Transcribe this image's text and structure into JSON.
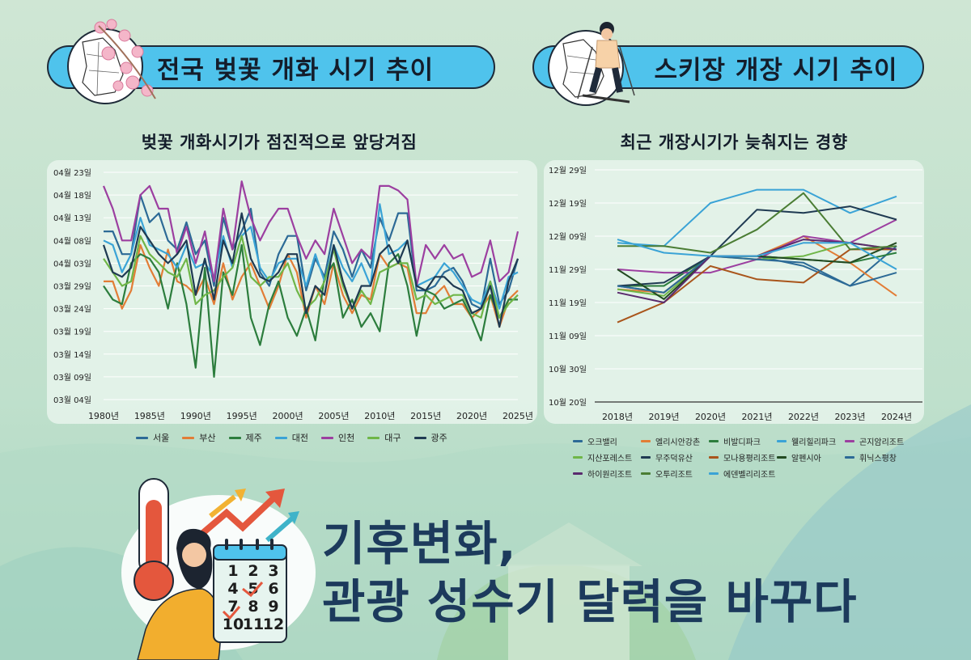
{
  "left_banner": {
    "title": "전국 벚꽃 개화 시기 추이"
  },
  "right_banner": {
    "title": "스키장 개장 시기 추이"
  },
  "left_subtitle": "벚꽃 개화시기가 점진적으로 앞당겨짐",
  "right_subtitle": "최근 개장시기가 늦춰지는 경향",
  "headline": {
    "line1": "기후변화,",
    "line2": "관광 성수기 달력을 바꾸다"
  },
  "calendar_numbers": [
    "1",
    "2",
    "3",
    "4",
    "5",
    "6",
    "7",
    "8",
    "9",
    "10",
    "11",
    "12"
  ],
  "chart_data": [
    {
      "type": "line",
      "y_unit": "date",
      "y_ticks": [
        "04월 23일",
        "04월 18일",
        "04월 13일",
        "04월 08일",
        "04월 03일",
        "03월 29일",
        "03월 24일",
        "03월 19일",
        "03월 14일",
        "03월 09일",
        "03월 04일"
      ],
      "ylim": [
        "03-04",
        "04-23"
      ],
      "x_ticks": [
        "1980년",
        "1985년",
        "1990년",
        "1995년",
        "2000년",
        "2005년",
        "2010년",
        "2015년",
        "2020년",
        "2025년"
      ],
      "xlim": [
        1980,
        2025
      ],
      "grid": "horizontal",
      "legend": "bottom",
      "series": [
        {
          "name": "서울",
          "color": "#2c6a96",
          "values": [
            "04-10",
            "04-10",
            "04-05",
            "04-05",
            "04-18",
            "04-12",
            "04-14",
            "04-08",
            "04-06",
            "04-12",
            "04-05",
            "04-08",
            "03-29",
            "04-13",
            "04-06",
            "04-10",
            "04-15",
            "04-01",
            "03-29",
            "04-05",
            "04-09",
            "04-09",
            "03-28",
            "04-04",
            "03-31",
            "04-10",
            "04-06",
            "03-31",
            "04-06",
            "04-02",
            "04-13",
            "04-08",
            "04-14",
            "04-14",
            "03-28",
            "03-28",
            "03-29",
            "04-01",
            "04-02",
            "03-30",
            "03-25",
            "03-24",
            "04-04",
            "03-25",
            "03-28",
            "04-04"
          ]
        },
        {
          "name": "부산",
          "color": "#e27d36",
          "values": [
            "03-30",
            "03-30",
            "03-24",
            "03-28",
            "04-07",
            "04-02",
            "03-29",
            "04-06",
            "03-30",
            "03-29",
            "03-27",
            "03-31",
            "03-25",
            "04-03",
            "03-26",
            "03-31",
            "04-03",
            "03-29",
            "03-24",
            "03-29",
            "04-05",
            "04-01",
            "03-22",
            "03-29",
            "03-25",
            "04-03",
            "03-27",
            "03-23",
            "03-27",
            "03-26",
            "04-05",
            "04-02",
            "04-03",
            "04-02",
            "03-23",
            "03-23",
            "03-27",
            "03-29",
            "03-25",
            "03-25",
            "03-22",
            "03-24",
            "03-27",
            "03-20",
            "03-26",
            "03-28"
          ]
        },
        {
          "name": "제주",
          "color": "#2c7d3d",
          "values": [
            "03-29",
            "03-26",
            "03-25",
            "04-03",
            "04-05",
            "04-04",
            "04-01",
            "03-24",
            "04-03",
            "03-25",
            "03-11",
            "04-02",
            "03-09",
            "04-01",
            "03-27",
            "04-07",
            "03-22",
            "03-16",
            "03-25",
            "03-30",
            "03-22",
            "03-18",
            "03-24",
            "03-17",
            "03-31",
            "04-03",
            "03-22",
            "03-26",
            "03-20",
            "03-23",
            "03-19",
            "04-03",
            "04-05",
            "03-29",
            "03-18",
            "03-28",
            "03-27",
            "03-24",
            "03-25",
            "03-26",
            "03-22",
            "03-17",
            "03-27",
            "03-22",
            "03-26",
            "03-26"
          ]
        },
        {
          "name": "대전",
          "color": "#3aa3d6",
          "values": [
            "04-08",
            "04-07",
            "04-01",
            "04-05",
            "04-13",
            "04-07",
            "04-06",
            "04-05",
            "04-02",
            "04-07",
            "04-02",
            "04-03",
            "03-31",
            "04-09",
            "04-02",
            "04-09",
            "04-11",
            "04-02",
            "03-30",
            "04-03",
            "04-04",
            "04-04",
            "03-29",
            "04-05",
            "03-30",
            "04-07",
            "04-02",
            "03-30",
            "04-03",
            "03-29",
            "04-16",
            "04-05",
            "04-06",
            "04-08",
            "03-29",
            "03-30",
            "03-31",
            "04-03",
            "04-01",
            "03-29",
            "03-26",
            "03-25",
            "03-30",
            "03-24",
            "03-31",
            "04-01"
          ]
        },
        {
          "name": "인천",
          "color": "#9c3fa0",
          "values": [
            "04-20",
            "04-15",
            "04-08",
            "04-08",
            "04-18",
            "04-20",
            "04-15",
            "04-15",
            "04-05",
            "04-11",
            "04-03",
            "04-10",
            "03-30",
            "04-15",
            "04-06",
            "04-21",
            "04-13",
            "04-08",
            "04-12",
            "04-15",
            "04-15",
            "04-09",
            "04-04",
            "04-08",
            "04-05",
            "04-15",
            "04-09",
            "04-03",
            "04-06",
            "04-04",
            "04-20",
            "04-20",
            "04-19",
            "04-17",
            "03-29",
            "04-07",
            "04-04",
            "04-07",
            "04-04",
            "04-05",
            "03-31",
            "04-01",
            "04-08",
            "03-30",
            "04-01",
            "04-10"
          ]
        },
        {
          "name": "대구",
          "color": "#6fb648",
          "values": [
            "04-04",
            "04-01",
            "03-29",
            "03-30",
            "04-09",
            "04-05",
            "04-03",
            "04-01",
            "03-31",
            "04-04",
            "03-25",
            "03-27",
            "03-28",
            "03-31",
            "04-02",
            "04-09",
            "03-31",
            "03-29",
            "03-31",
            "03-31",
            "04-03",
            "03-28",
            "03-24",
            "03-26",
            "03-30",
            "04-06",
            "03-29",
            "03-24",
            "03-28",
            "03-25",
            "04-01",
            "04-02",
            "04-03",
            "04-03",
            "03-26",
            "03-27",
            "03-25",
            "03-26",
            "03-27",
            "03-27",
            "03-23",
            "03-22",
            "03-30",
            "03-22",
            "03-25",
            "03-27"
          ]
        },
        {
          "name": "광주",
          "color": "#1f3a52",
          "values": [
            "04-07",
            "04-01",
            "03-31",
            "04-02",
            "04-11",
            "04-08",
            "04-05",
            "04-03",
            "04-05",
            "04-08",
            "03-27",
            "04-04",
            "03-26",
            "04-08",
            "04-03",
            "04-14",
            "04-04",
            "03-31",
            "03-30",
            "04-01",
            "04-05",
            "04-05",
            "03-23",
            "03-29",
            "03-27",
            "04-07",
            "03-30",
            "03-24",
            "03-29",
            "03-29",
            "04-05",
            "04-07",
            "04-03",
            "04-08",
            "03-29",
            "03-28",
            "03-31",
            "03-31",
            "03-29",
            "03-28",
            "03-23",
            "03-24",
            "03-29",
            "03-20",
            "03-30",
            "04-04"
          ]
        }
      ]
    },
    {
      "type": "line",
      "y_unit": "date",
      "y_ticks": [
        "12월 29일",
        "12월 19일",
        "12월 09일",
        "11월 29일",
        "11월 19일",
        "11월 09일",
        "10월 30일",
        "10월 20일"
      ],
      "ylim": [
        "10-20",
        "12-29"
      ],
      "categories": [
        "2018년",
        "2019년",
        "2020년",
        "2021년",
        "2022년",
        "2023년",
        "2024년"
      ],
      "grid": "horizontal",
      "legend": "bottom",
      "series": [
        {
          "name": "오크밸리",
          "color": "#2c6a96",
          "values": [
            "11-24",
            "11-22",
            "12-03",
            "12-03",
            "11-30",
            "11-24",
            "12-06"
          ]
        },
        {
          "name": "엘리시안강촌",
          "color": "#e27d36",
          "values": [
            "11-23",
            "11-22",
            "12-03",
            "12-03",
            "12-09",
            "12-01",
            "11-21"
          ]
        },
        {
          "name": "비발디파크",
          "color": "#2c7d3d",
          "values": [
            "11-24",
            "11-24",
            "12-03",
            "12-03",
            "12-02",
            "12-01",
            "12-04"
          ]
        },
        {
          "name": "웰리힐리파크",
          "color": "#3aa3d6",
          "values": [
            "12-07",
            "12-06",
            "12-19",
            "12-23",
            "12-23",
            "12-16",
            "12-21"
          ]
        },
        {
          "name": "곤지암리조트",
          "color": "#9c3fa0",
          "values": [
            "11-29",
            "11-28",
            "11-28",
            "12-02",
            "12-09",
            "12-07",
            "12-14"
          ]
        },
        {
          "name": "지산포레스트",
          "color": "#6fb648",
          "values": [
            "11-23",
            "11-21",
            "12-03",
            "12-02",
            "12-03",
            "12-07",
            "12-05"
          ]
        },
        {
          "name": "무주덕유산",
          "color": "#1f3a52",
          "values": [
            "11-24",
            "11-25",
            "12-03",
            "12-17",
            "12-16",
            "12-18",
            "12-14"
          ]
        },
        {
          "name": "모나용평리조트",
          "color": "#a9551b",
          "values": [
            "11-13",
            "11-19",
            "11-30",
            "11-26",
            "11-25",
            "12-05",
            "12-05"
          ]
        },
        {
          "name": "알펜시아",
          "color": "#234a22",
          "values": [
            "11-29",
            "11-20",
            "12-03",
            "12-03",
            "12-02",
            "12-01",
            "12-07"
          ]
        },
        {
          "name": "휘닉스평창",
          "color": "#2c6a96",
          "values": [
            "11-24",
            "11-22",
            "12-03",
            "12-02",
            "12-01",
            "11-24",
            "11-28"
          ]
        },
        {
          "name": "하이원리조트",
          "color": "#5a2a6e",
          "values": [
            "11-22",
            "11-19",
            "12-03",
            "12-03",
            "12-08",
            "12-07",
            "12-05"
          ]
        },
        {
          "name": "오투리조트",
          "color": "#4b7d34",
          "values": [
            "12-06",
            "12-06",
            "12-04",
            "12-11",
            "12-22",
            "12-05",
            "12-06"
          ]
        },
        {
          "name": "에덴벨리리조트",
          "color": "#3aa3d6",
          "values": [
            "12-08",
            "12-04",
            "12-03",
            "12-03",
            "12-07",
            "12-07",
            "11-29"
          ]
        }
      ]
    }
  ]
}
